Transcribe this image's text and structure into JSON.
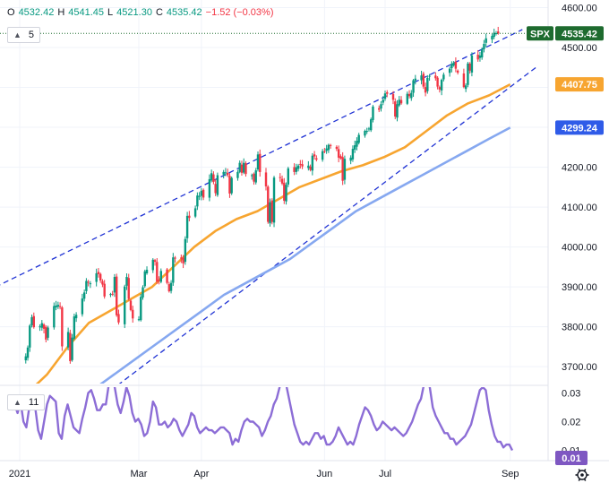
{
  "legend": {
    "open_label": "O",
    "open": "4532.42",
    "high_label": "H",
    "high": "4541.45",
    "low_label": "L",
    "low": "4521.30",
    "close_label": "C",
    "close": "4535.42",
    "change": "−1.52 (−0.03%)"
  },
  "main_pane": {
    "collapse_value": "5"
  },
  "sub_pane": {
    "collapse_value": "11"
  },
  "colors": {
    "up": "#089981",
    "down": "#f23645",
    "ma_orange": "#f7a530",
    "ma_blue": "#86a8f0",
    "channel": "#1f32d4",
    "osc": "#8c6dd6",
    "tag_dark": "#1e6b2f",
    "tag_blue": "#2f5be8",
    "tag_orange": "#f7a530",
    "tag_purple": "#7e57c2"
  },
  "chart_data": {
    "type": "line",
    "price_axis": {
      "ticks": [
        "4600.00",
        "4500.00",
        "4400.00",
        "4300.00",
        "4200.00",
        "4100.00",
        "4000.00",
        "3900.00",
        "3800.00",
        "3700.00"
      ],
      "ylim": [
        3670,
        4600
      ]
    },
    "osc_axis": {
      "ticks": [
        "0.03",
        "0.02",
        "0.01"
      ]
    },
    "x_labels": [
      "2021",
      "Mar",
      "Apr",
      "Jun",
      "Jul",
      "Sep"
    ],
    "tags": {
      "symbol": "SPX",
      "last_price": "4535.42",
      "ma_fast": "4407.75",
      "ma_slow": "4299.24",
      "osc_value": "0.01"
    },
    "candles": {
      "start": "2021-01-04",
      "close": [
        3726,
        3748,
        3803,
        3824,
        3799,
        3801,
        3809,
        3795,
        3768,
        3798,
        3852,
        3853,
        3855,
        3850,
        3751,
        3787,
        3714,
        3773,
        3826,
        3830,
        3871,
        3886,
        3915,
        3911,
        3909,
        3934,
        3932,
        3916,
        3906,
        3876,
        3882,
        3881,
        3925,
        3829,
        3811,
        3901,
        3925,
        3870,
        3842,
        3821,
        3819,
        3875,
        3899,
        3939,
        3943,
        3968,
        3963,
        3913,
        3915,
        3940,
        3910,
        3889,
        3910,
        3974,
        3972,
        3971,
        3959,
        4020,
        4078,
        4073,
        4097,
        4129,
        4128,
        4141,
        4124,
        4170,
        4185,
        4163,
        4135,
        4180,
        4188,
        4187,
        4180,
        4134,
        4173,
        4188,
        4211,
        4186,
        4211,
        4183,
        4180,
        4164,
        4192,
        4232,
        4188,
        4152,
        4063,
        4112,
        4063,
        4174,
        4173,
        4159,
        4116,
        4156,
        4197,
        4188,
        4200,
        4204,
        4208,
        4202,
        4204,
        4193,
        4229,
        4227,
        4219,
        4240,
        4240,
        4247,
        4256,
        4255,
        4246,
        4224,
        4222,
        4166,
        4221,
        4224,
        4246,
        4255,
        4266,
        4281,
        4291,
        4291,
        4297,
        4320,
        4352,
        4344,
        4358,
        4369,
        4385,
        4384,
        4369,
        4327,
        4358,
        4369,
        4360,
        4384,
        4378,
        4386,
        4418,
        4422,
        4430,
        4402,
        4387,
        4424,
        4429,
        4423,
        4402,
        4395,
        4419,
        4432,
        4447,
        4459,
        4462,
        4447,
        4437,
        4401,
        4405,
        4460,
        4442,
        4480,
        4470,
        4480,
        4496,
        4509,
        4523,
        4529,
        4537,
        4536,
        4535
      ]
    },
    "ma_fast": [
      3630,
      3680,
      3750,
      3810,
      3840,
      3870,
      3900,
      3950,
      4000,
      4040,
      4070,
      4090,
      4120,
      4150,
      4170,
      4190,
      4205,
      4225,
      4250,
      4290,
      4330,
      4360,
      4380,
      4407.75
    ],
    "ma_slow": [
      3530,
      3560,
      3600,
      3640,
      3680,
      3720,
      3760,
      3800,
      3840,
      3880,
      3910,
      3940,
      3970,
      4010,
      4050,
      4090,
      4120,
      4150,
      4180,
      4210,
      4240,
      4270,
      4299.24
    ],
    "channel_upper": {
      "from": [
        "2020-12-16",
        3890
      ],
      "to": [
        "2021-09-07",
        4545
      ]
    },
    "channel_lower": {
      "from": [
        "2021-02-15",
        3640
      ],
      "to": [
        "2021-09-15",
        4455
      ]
    },
    "oscillator": [
      0.024,
      0.026,
      0.023,
      0.027,
      0.02,
      0.018,
      0.025,
      0.029,
      0.025,
      0.017,
      0.014,
      0.02,
      0.026,
      0.029,
      0.028,
      0.027,
      0.016,
      0.014,
      0.022,
      0.026,
      0.022,
      0.018,
      0.017,
      0.016,
      0.021,
      0.025,
      0.03,
      0.031,
      0.028,
      0.024,
      0.024,
      0.026,
      0.026,
      0.033,
      0.034,
      0.032,
      0.026,
      0.023,
      0.027,
      0.032,
      0.029,
      0.023,
      0.02,
      0.021,
      0.019,
      0.015,
      0.016,
      0.02,
      0.027,
      0.025,
      0.019,
      0.019,
      0.02,
      0.018,
      0.019,
      0.021,
      0.02,
      0.017,
      0.015,
      0.017,
      0.019,
      0.023,
      0.022,
      0.018,
      0.016,
      0.017,
      0.018,
      0.017,
      0.017,
      0.016,
      0.017,
      0.018,
      0.018,
      0.017,
      0.016,
      0.012,
      0.014,
      0.013,
      0.017,
      0.02,
      0.021,
      0.02,
      0.02,
      0.019,
      0.018,
      0.015,
      0.017,
      0.02,
      0.022,
      0.026,
      0.028,
      0.032,
      0.036,
      0.034,
      0.029,
      0.024,
      0.019,
      0.016,
      0.013,
      0.012,
      0.013,
      0.012,
      0.014,
      0.016,
      0.016,
      0.014,
      0.015,
      0.012,
      0.012,
      0.013,
      0.015,
      0.018,
      0.016,
      0.014,
      0.012,
      0.013,
      0.012,
      0.015,
      0.019,
      0.022,
      0.025,
      0.024,
      0.022,
      0.019,
      0.017,
      0.018,
      0.02,
      0.019,
      0.018,
      0.017,
      0.018,
      0.017,
      0.016,
      0.015,
      0.016,
      0.018,
      0.02,
      0.023,
      0.026,
      0.028,
      0.033,
      0.034,
      0.032,
      0.025,
      0.022,
      0.02,
      0.018,
      0.016,
      0.016,
      0.014,
      0.014,
      0.012,
      0.013,
      0.014,
      0.015,
      0.017,
      0.019,
      0.023,
      0.027,
      0.031,
      0.032,
      0.031,
      0.024,
      0.019,
      0.015,
      0.013,
      0.013,
      0.011,
      0.012,
      0.012,
      0.01
    ]
  }
}
